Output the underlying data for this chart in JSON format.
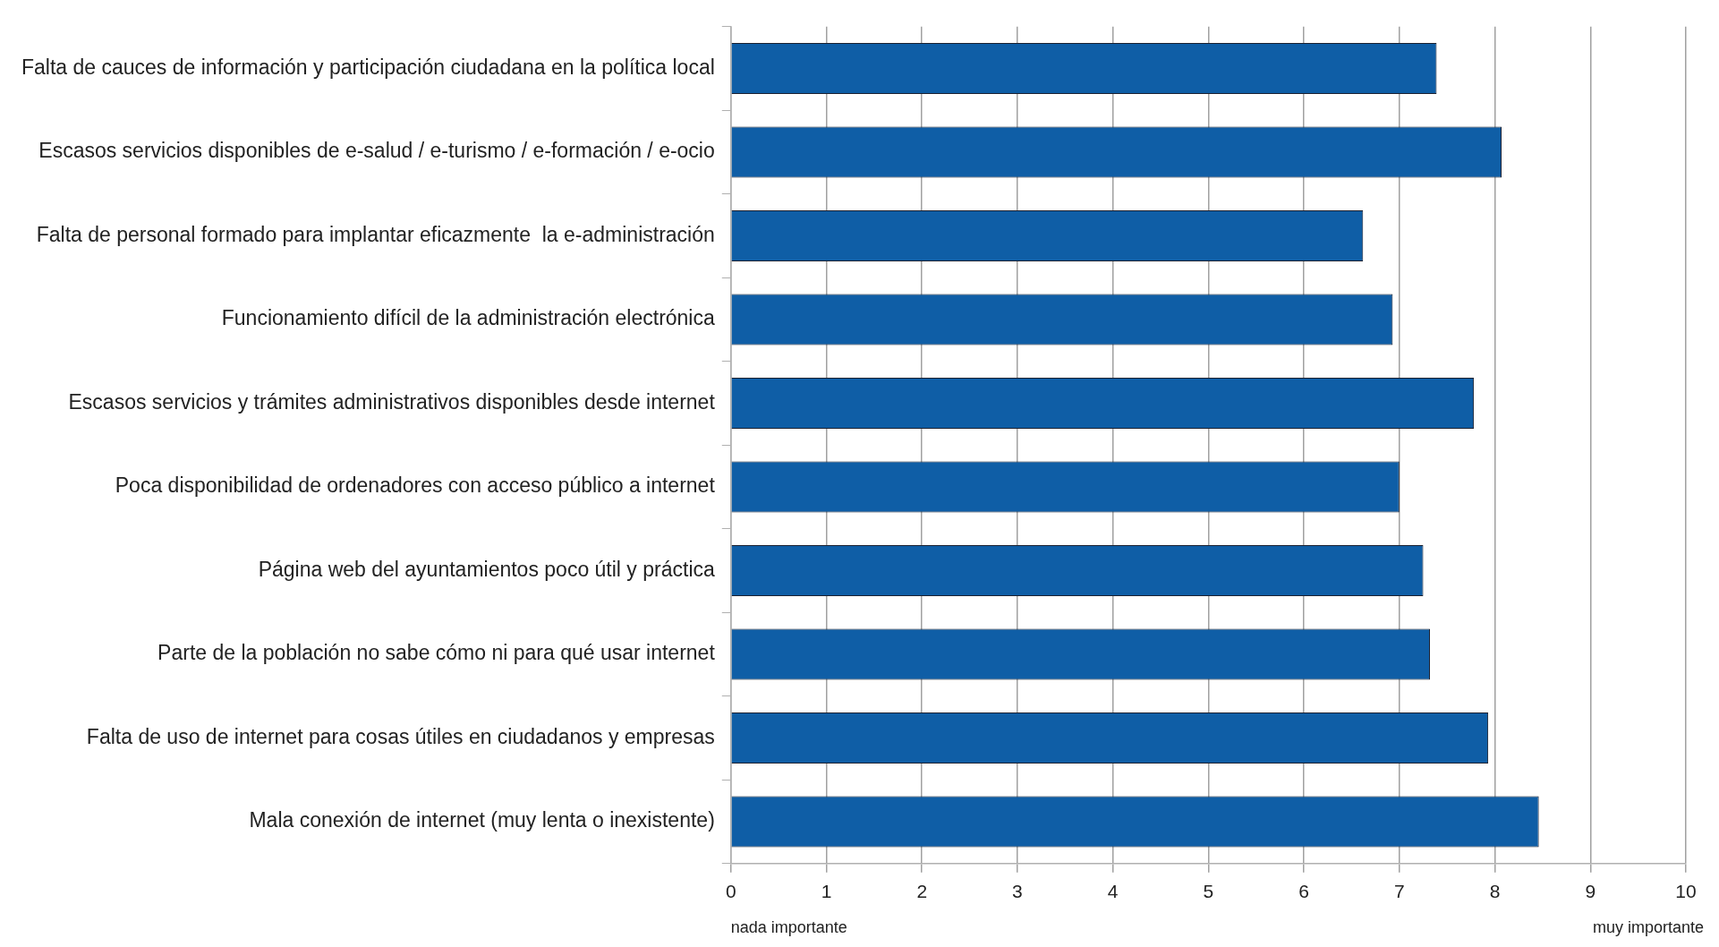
{
  "chart_data": {
    "type": "bar",
    "orientation": "horizontal",
    "categories": [
      "Falta de cauces de información y participación ciudadana en la política local",
      "Escasos servicios disponibles de e-salud / e-turismo / e-formación / e-ocio",
      "Falta de personal formado para implantar eficazmente  la e-administración",
      "Funcionamiento difícil de la administración electrónica",
      "Escasos servicios y trámites administrativos disponibles desde internet",
      "Poca disponibilidad de ordenadores con acceso público a internet",
      "Página web del ayuntamientos poco útil y práctica",
      "Parte de la población no sabe cómo ni para qué usar internet",
      "Falta de uso de internet para cosas útiles en ciudadanos y empresas",
      "Mala conexión de internet (muy lenta o inexistente)"
    ],
    "values": [
      7.39,
      8.07,
      6.62,
      6.93,
      7.78,
      7.0,
      7.25,
      7.32,
      7.93,
      8.46
    ],
    "color": "#0f5ea6",
    "xlim": [
      0,
      10
    ],
    "xticks": [
      0,
      1,
      2,
      3,
      4,
      5,
      6,
      7,
      8,
      9,
      10
    ],
    "grid": "x",
    "legend": false,
    "annotations": [
      "nada importante",
      "muy importante"
    ]
  }
}
